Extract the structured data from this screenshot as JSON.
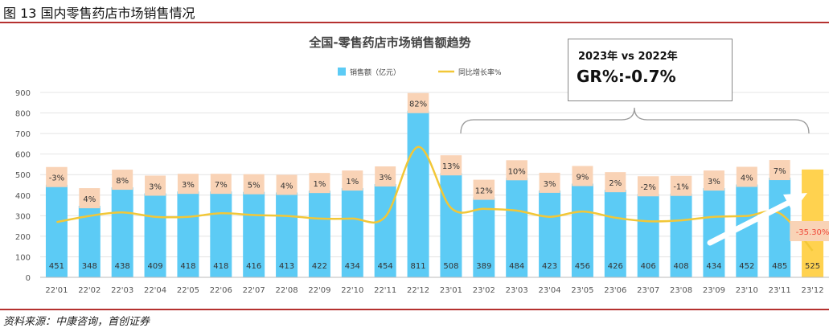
{
  "caption": "图 13 国内零售药店市场销售情况",
  "source": "资料来源：中康咨询，首创证券",
  "annotation": {
    "title": "2023年 vs 2022年",
    "value": "GR%:-0.7%"
  },
  "colors": {
    "bar": "#5ccbf5",
    "bar_highlight": "#ffd24f",
    "line": "#f2c737",
    "label_bg": "#f9d3b6",
    "label_negative": "#f04a3a",
    "rule": "#b5312f"
  },
  "chart_data": {
    "type": "bar",
    "title": "全国-零售药店市场销售额趋势",
    "legend": {
      "bar": "销售额（亿元）",
      "line": "同比增长率%",
      "position": "top-center"
    },
    "categories": [
      "22'01",
      "22'02",
      "22'03",
      "22'04",
      "22'05",
      "22'06",
      "22'07",
      "22'08",
      "22'09",
      "22'10",
      "22'11",
      "22'12",
      "23'01",
      "23'02",
      "23'03",
      "23'04",
      "23'05",
      "23'06",
      "23'07",
      "23'08",
      "23'09",
      "23'10",
      "23'11",
      "23'12"
    ],
    "series": [
      {
        "name": "销售额（亿元）",
        "type": "bar",
        "values": [
          451,
          348,
          438,
          409,
          418,
          418,
          416,
          413,
          422,
          434,
          454,
          811,
          508,
          389,
          484,
          423,
          456,
          426,
          406,
          408,
          434,
          452,
          485,
          525
        ]
      },
      {
        "name": "同比增长率%",
        "type": "line",
        "values": [
          -3,
          4,
          8,
          3,
          3,
          7,
          5,
          4,
          1,
          1,
          3,
          82,
          13,
          12,
          10,
          3,
          9,
          2,
          -2,
          -1,
          3,
          4,
          7,
          -35.3
        ],
        "labels": [
          "-3%",
          "4%",
          "8%",
          "3%",
          "3%",
          "7%",
          "5%",
          "4%",
          "1%",
          "1%",
          "3%",
          "82%",
          "13%",
          "12%",
          "10%",
          "3%",
          "9%",
          "2%",
          "-2%",
          "-1%",
          "3%",
          "4%",
          "7%",
          "-35.30%"
        ]
      }
    ],
    "yticks": [
      0,
      100,
      200,
      300,
      400,
      500,
      600,
      700,
      800,
      900
    ],
    "ylim": [
      0,
      900
    ],
    "grid": true,
    "highlight_index": 23
  }
}
